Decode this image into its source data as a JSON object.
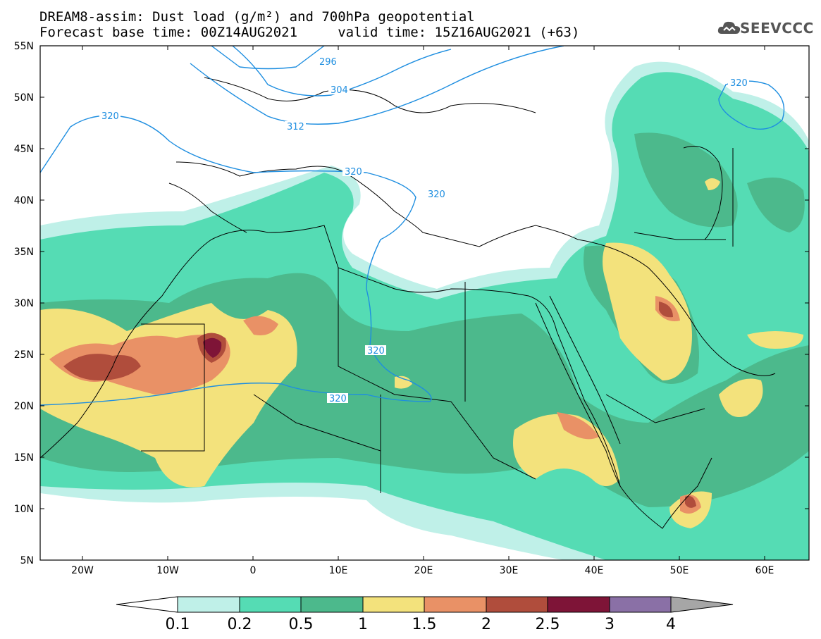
{
  "title": {
    "line1": "DREAM8-assim: Dust load (g/m²) and 700hPa geopotential",
    "line2": "Forecast base time: 00Z14AUG2021     valid time: 15Z16AUG2021 (+63)"
  },
  "logo": {
    "text": "SEEVCCC",
    "icon": "cloud-icon"
  },
  "axes": {
    "lat_labels": [
      "55N",
      "50N",
      "45N",
      "40N",
      "35N",
      "30N",
      "25N",
      "20N",
      "15N",
      "10N",
      "5N"
    ],
    "lon_labels": [
      "20W",
      "10W",
      "0",
      "10E",
      "20E",
      "30E",
      "40E",
      "50E",
      "60E"
    ]
  },
  "contour_labels": [
    "296",
    "304",
    "312",
    "320",
    "320",
    "320",
    "320",
    "320",
    "320"
  ],
  "colorbar": {
    "labels": [
      "0.1",
      "0.2",
      "0.5",
      "1",
      "1.5",
      "2",
      "2.5",
      "3",
      "4"
    ],
    "colors": [
      "#bff0e8",
      "#55dcb4",
      "#4cb98c",
      "#f3e27c",
      "#e99166",
      "#b04d3c",
      "#7e1437",
      "#8a70a6",
      "#a6a6a6"
    ]
  },
  "colors": {
    "contour": "#1e8ee0",
    "border": "#000000"
  }
}
